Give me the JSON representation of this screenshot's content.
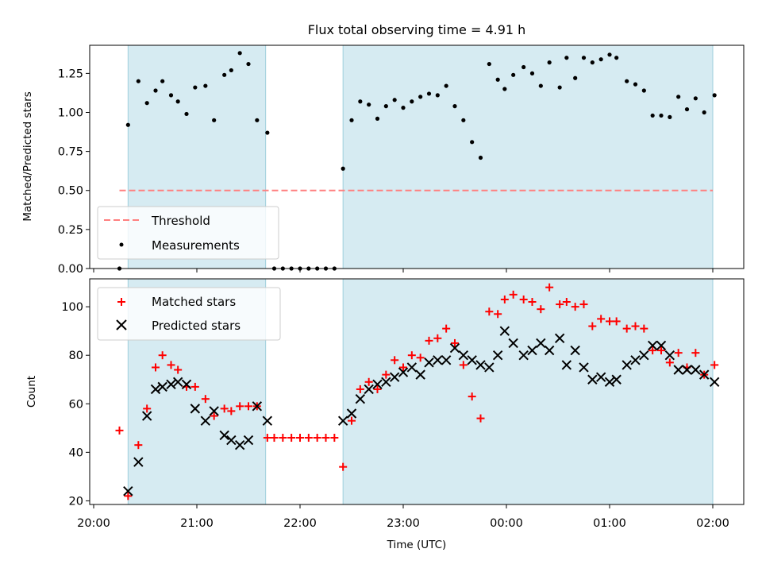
{
  "chart_data": [
    {
      "type": "scatter",
      "title": "Flux total observing time = 4.91 h",
      "ylabel": "Matched/Predicted stars",
      "xlabel": "",
      "ylim": [
        0.0,
        1.43
      ],
      "yticks": [
        "0.00",
        "0.25",
        "0.50",
        "0.75",
        "1.00",
        "1.25"
      ],
      "legend": {
        "placement": "lower-left",
        "entries": [
          "Threshold",
          "Measurements"
        ]
      },
      "threshold": {
        "name": "Threshold",
        "y": 0.5,
        "x_start": "20:15",
        "x_end": "02:00",
        "color": "#ff7f7f"
      },
      "shaded_intervals": [
        [
          "20:20",
          "21:40"
        ],
        [
          "22:25",
          "02:00"
        ]
      ],
      "series": [
        {
          "name": "Measurements",
          "color": "#000000",
          "points": [
            [
              "20:15",
              0.0
            ],
            [
              "20:20",
              0.92
            ],
            [
              "20:26",
              1.2
            ],
            [
              "20:31",
              1.06
            ],
            [
              "20:36",
              1.14
            ],
            [
              "20:40",
              1.2
            ],
            [
              "20:45",
              1.11
            ],
            [
              "20:49",
              1.07
            ],
            [
              "20:54",
              0.99
            ],
            [
              "20:59",
              1.16
            ],
            [
              "21:05",
              1.17
            ],
            [
              "21:10",
              0.95
            ],
            [
              "21:16",
              1.24
            ],
            [
              "21:20",
              1.27
            ],
            [
              "21:25",
              1.38
            ],
            [
              "21:30",
              1.31
            ],
            [
              "21:35",
              0.95
            ],
            [
              "21:41",
              0.87
            ],
            [
              "21:45",
              0.0
            ],
            [
              "21:50",
              0.0
            ],
            [
              "21:55",
              0.0
            ],
            [
              "22:00",
              0.0
            ],
            [
              "22:05",
              0.0
            ],
            [
              "22:10",
              0.0
            ],
            [
              "22:15",
              0.0
            ],
            [
              "22:20",
              0.0
            ],
            [
              "22:25",
              0.64
            ],
            [
              "22:30",
              0.95
            ],
            [
              "22:35",
              1.07
            ],
            [
              "22:40",
              1.05
            ],
            [
              "22:45",
              0.96
            ],
            [
              "22:50",
              1.04
            ],
            [
              "22:55",
              1.08
            ],
            [
              "23:00",
              1.03
            ],
            [
              "23:05",
              1.07
            ],
            [
              "23:10",
              1.1
            ],
            [
              "23:15",
              1.12
            ],
            [
              "23:20",
              1.11
            ],
            [
              "23:25",
              1.17
            ],
            [
              "23:30",
              1.04
            ],
            [
              "23:35",
              0.95
            ],
            [
              "23:40",
              0.81
            ],
            [
              "23:45",
              0.71
            ],
            [
              "23:50",
              1.31
            ],
            [
              "23:55",
              1.21
            ],
            [
              "23:59",
              1.15
            ],
            [
              "00:04",
              1.24
            ],
            [
              "00:10",
              1.29
            ],
            [
              "00:15",
              1.25
            ],
            [
              "00:20",
              1.17
            ],
            [
              "00:25",
              1.32
            ],
            [
              "00:31",
              1.16
            ],
            [
              "00:35",
              1.35
            ],
            [
              "00:40",
              1.22
            ],
            [
              "00:45",
              1.35
            ],
            [
              "00:50",
              1.32
            ],
            [
              "00:55",
              1.34
            ],
            [
              "01:00",
              1.37
            ],
            [
              "01:04",
              1.35
            ],
            [
              "01:10",
              1.2
            ],
            [
              "01:15",
              1.18
            ],
            [
              "01:20",
              1.14
            ],
            [
              "01:25",
              0.98
            ],
            [
              "01:30",
              0.98
            ],
            [
              "01:35",
              0.97
            ],
            [
              "01:40",
              1.1
            ],
            [
              "01:45",
              1.02
            ],
            [
              "01:50",
              1.09
            ],
            [
              "01:55",
              1.0
            ],
            [
              "02:01",
              1.11
            ]
          ]
        }
      ]
    },
    {
      "type": "scatter",
      "title": "",
      "ylabel": "Count",
      "xlabel": "Time (UTC)",
      "ylim": [
        18.5,
        111.5
      ],
      "yticks": [
        "20",
        "40",
        "60",
        "80",
        "100"
      ],
      "xticks": [
        "20:00",
        "21:00",
        "22:00",
        "23:00",
        "00:00",
        "01:00",
        "02:00"
      ],
      "legend": {
        "placement": "top-left",
        "entries": [
          "Matched stars",
          "Predicted stars"
        ]
      },
      "shaded_intervals": [
        [
          "20:20",
          "21:40"
        ],
        [
          "22:25",
          "02:00"
        ]
      ],
      "series": [
        {
          "name": "Matched stars",
          "marker": "plus",
          "color": "#ff0000",
          "points": [
            [
              "20:15",
              49
            ],
            [
              "20:20",
              22
            ],
            [
              "20:26",
              43
            ],
            [
              "20:31",
              58
            ],
            [
              "20:36",
              75
            ],
            [
              "20:40",
              80
            ],
            [
              "20:45",
              76
            ],
            [
              "20:49",
              74
            ],
            [
              "20:54",
              67
            ],
            [
              "20:59",
              67
            ],
            [
              "21:05",
              62
            ],
            [
              "21:10",
              55
            ],
            [
              "21:16",
              58
            ],
            [
              "21:20",
              57
            ],
            [
              "21:25",
              59
            ],
            [
              "21:30",
              59
            ],
            [
              "21:35",
              59
            ],
            [
              "21:41",
              46
            ],
            [
              "21:45",
              46
            ],
            [
              "21:50",
              46
            ],
            [
              "21:55",
              46
            ],
            [
              "22:00",
              46
            ],
            [
              "22:05",
              46
            ],
            [
              "22:10",
              46
            ],
            [
              "22:15",
              46
            ],
            [
              "22:20",
              46
            ],
            [
              "22:25",
              34
            ],
            [
              "22:30",
              53
            ],
            [
              "22:35",
              66
            ],
            [
              "22:40",
              69
            ],
            [
              "22:45",
              66
            ],
            [
              "22:50",
              72
            ],
            [
              "22:55",
              78
            ],
            [
              "23:00",
              75
            ],
            [
              "23:05",
              80
            ],
            [
              "23:10",
              79
            ],
            [
              "23:15",
              86
            ],
            [
              "23:20",
              87
            ],
            [
              "23:25",
              91
            ],
            [
              "23:30",
              85
            ],
            [
              "23:35",
              76
            ],
            [
              "23:40",
              63
            ],
            [
              "23:45",
              54
            ],
            [
              "23:50",
              98
            ],
            [
              "23:55",
              97
            ],
            [
              "23:59",
              103
            ],
            [
              "00:04",
              105
            ],
            [
              "00:10",
              103
            ],
            [
              "00:15",
              102
            ],
            [
              "00:20",
              99
            ],
            [
              "00:25",
              108
            ],
            [
              "00:31",
              101
            ],
            [
              "00:35",
              102
            ],
            [
              "00:40",
              100
            ],
            [
              "00:45",
              101
            ],
            [
              "00:50",
              92
            ],
            [
              "00:55",
              95
            ],
            [
              "01:00",
              94
            ],
            [
              "01:04",
              94
            ],
            [
              "01:10",
              91
            ],
            [
              "01:15",
              92
            ],
            [
              "01:20",
              91
            ],
            [
              "01:25",
              82
            ],
            [
              "01:30",
              82
            ],
            [
              "01:35",
              77
            ],
            [
              "01:40",
              81
            ],
            [
              "01:45",
              75
            ],
            [
              "01:50",
              81
            ],
            [
              "01:55",
              72
            ],
            [
              "02:01",
              76
            ]
          ]
        },
        {
          "name": "Predicted stars",
          "marker": "x",
          "color": "#000000",
          "points": [
            [
              "20:20",
              24
            ],
            [
              "20:26",
              36
            ],
            [
              "20:31",
              55
            ],
            [
              "20:36",
              66
            ],
            [
              "20:40",
              67
            ],
            [
              "20:45",
              68
            ],
            [
              "20:49",
              69
            ],
            [
              "20:54",
              68
            ],
            [
              "20:59",
              58
            ],
            [
              "21:05",
              53
            ],
            [
              "21:10",
              57
            ],
            [
              "21:16",
              47
            ],
            [
              "21:20",
              45
            ],
            [
              "21:25",
              43
            ],
            [
              "21:30",
              45
            ],
            [
              "21:35",
              59
            ],
            [
              "21:41",
              53
            ],
            [
              "22:25",
              53
            ],
            [
              "22:30",
              56
            ],
            [
              "22:35",
              62
            ],
            [
              "22:40",
              66
            ],
            [
              "22:45",
              68
            ],
            [
              "22:50",
              69
            ],
            [
              "22:55",
              71
            ],
            [
              "23:00",
              73
            ],
            [
              "23:05",
              75
            ],
            [
              "23:10",
              72
            ],
            [
              "23:15",
              77
            ],
            [
              "23:20",
              78
            ],
            [
              "23:25",
              78
            ],
            [
              "23:30",
              83
            ],
            [
              "23:35",
              80
            ],
            [
              "23:40",
              78
            ],
            [
              "23:45",
              76
            ],
            [
              "23:50",
              75
            ],
            [
              "23:55",
              80
            ],
            [
              "23:59",
              90
            ],
            [
              "00:04",
              85
            ],
            [
              "00:10",
              80
            ],
            [
              "00:15",
              82
            ],
            [
              "00:20",
              85
            ],
            [
              "00:25",
              82
            ],
            [
              "00:31",
              87
            ],
            [
              "00:35",
              76
            ],
            [
              "00:40",
              82
            ],
            [
              "00:45",
              75
            ],
            [
              "00:50",
              70
            ],
            [
              "00:55",
              71
            ],
            [
              "01:00",
              69
            ],
            [
              "01:04",
              70
            ],
            [
              "01:10",
              76
            ],
            [
              "01:15",
              78
            ],
            [
              "01:20",
              80
            ],
            [
              "01:25",
              84
            ],
            [
              "01:30",
              84
            ],
            [
              "01:35",
              80
            ],
            [
              "01:40",
              74
            ],
            [
              "01:45",
              74
            ],
            [
              "01:50",
              74
            ],
            [
              "01:55",
              72
            ],
            [
              "02:01",
              69
            ]
          ]
        }
      ]
    }
  ],
  "colors": {
    "shade": "#add8e6",
    "threshold": "#ff7f7f",
    "matched": "#ff0000",
    "predicted": "#000000",
    "measurements": "#000000"
  }
}
